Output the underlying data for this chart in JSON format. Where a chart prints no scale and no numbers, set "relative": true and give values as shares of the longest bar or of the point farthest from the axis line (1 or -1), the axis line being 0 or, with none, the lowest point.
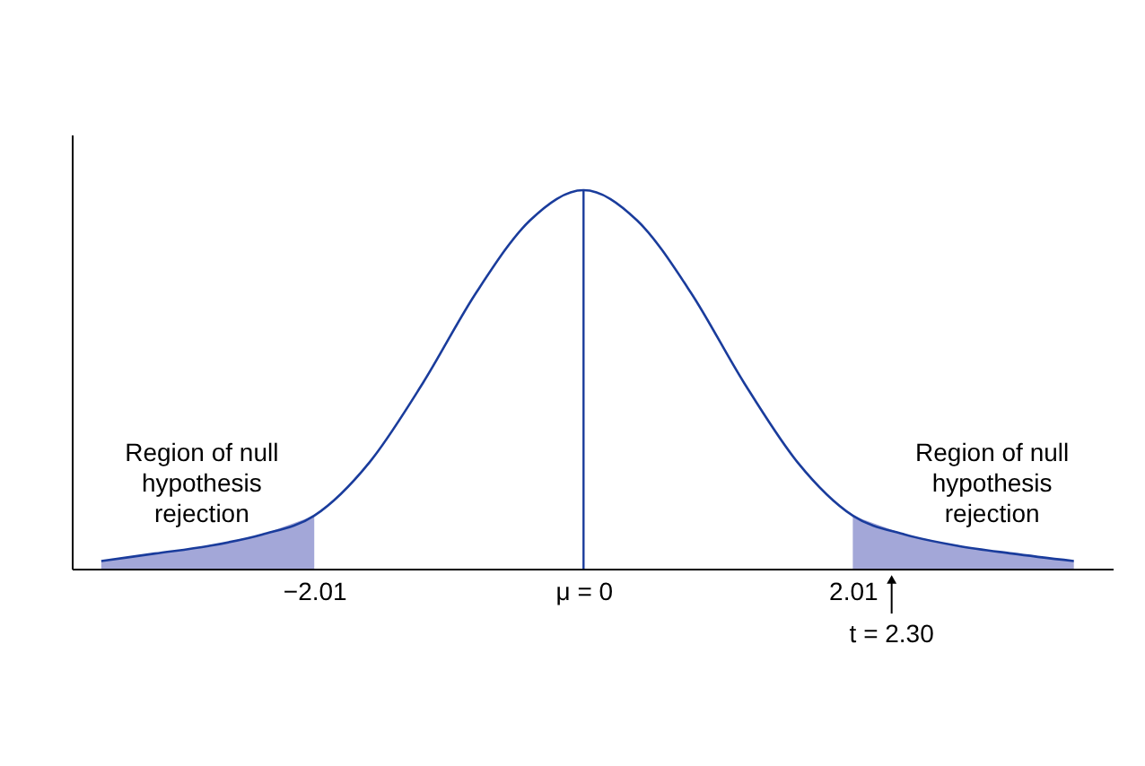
{
  "chart_data": {
    "type": "area",
    "relative": true,
    "x": [
      -3.6,
      -3.2,
      -2.8,
      -2.4,
      -2.01,
      -1.6,
      -1.2,
      -0.8,
      -0.4,
      0,
      0.4,
      0.8,
      1.2,
      1.6,
      2.01,
      2.4,
      2.8,
      3.2,
      3.66
    ],
    "series": [
      {
        "type": "line",
        "color": "#1a3c9c",
        "values": [
          0.02,
          0.04,
          0.06,
          0.09,
          0.14,
          0.28,
          0.49,
          0.73,
          0.92,
          1,
          0.92,
          0.73,
          0.49,
          0.28,
          0.14,
          0.09,
          0.06,
          0.04,
          0.02
        ]
      },
      {
        "color": "#a3a7d8",
        "x": [
          -3.6,
          -3.2,
          -2.8,
          -2.4,
          -2.01
        ],
        "values": [
          0.02,
          0.04,
          0.06,
          0.09,
          0.14
        ]
      },
      {
        "color": "#a3a7d8",
        "x": [
          2.01,
          2.4,
          2.8,
          3.2,
          3.66
        ],
        "values": [
          0.14,
          0.09,
          0.06,
          0.04,
          0.02
        ]
      }
    ],
    "xlim": [
      -3.82,
      3.95
    ],
    "xticks": [
      {
        "value": -2.01,
        "label": "−2.01"
      },
      {
        "value": 0,
        "label": "μ = 0"
      },
      {
        "value": 2.01,
        "label": "2.01"
      }
    ],
    "ref_lines": [
      {
        "axis": "x",
        "value": 0,
        "color": "#1a3c9c"
      }
    ],
    "annotations": [
      "Region of null\nhypothesis\nrejection",
      "Region of null\nhypothesis\nrejection",
      {
        "text": "t = 2.30",
        "x": 2.3,
        "y": 0
      }
    ],
    "grid": false,
    "legend": false
  }
}
